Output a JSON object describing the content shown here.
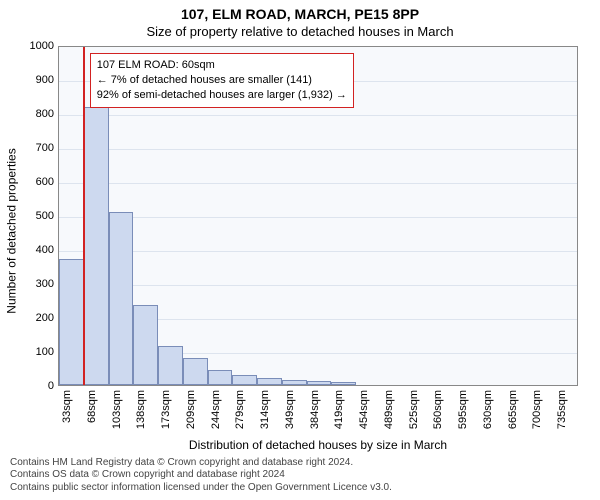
{
  "title": "107, ELM ROAD, MARCH, PE15 8PP",
  "subtitle": "Size of property relative to detached houses in March",
  "y_axis_label": "Number of detached properties",
  "x_axis_label": "Distribution of detached houses by size in March",
  "chart": {
    "type": "histogram",
    "background_color": "#f7f9fc",
    "grid_color": "#dde4ee",
    "axis_color": "#888888",
    "bar_fill": "#cdd9ef",
    "bar_border": "#7a8db8",
    "marker_color": "#d22222",
    "ylim": [
      0,
      1000
    ],
    "ytick_step": 100,
    "x_tick_labels": [
      "33sqm",
      "68sqm",
      "103sqm",
      "138sqm",
      "173sqm",
      "209sqm",
      "244sqm",
      "279sqm",
      "314sqm",
      "349sqm",
      "384sqm",
      "419sqm",
      "454sqm",
      "489sqm",
      "525sqm",
      "560sqm",
      "595sqm",
      "630sqm",
      "665sqm",
      "700sqm",
      "735sqm"
    ],
    "bars": [
      370,
      818,
      510,
      235,
      115,
      80,
      45,
      30,
      20,
      15,
      12,
      8,
      0,
      0,
      0,
      0,
      0,
      0,
      0,
      0,
      0
    ],
    "marker_bin_index": 1,
    "marker_position_in_bin": 0.0,
    "annotation": {
      "line1": "107 ELM ROAD: 60sqm",
      "line2": "← 7% of detached houses are smaller (141)",
      "line3": "92% of semi-detached houses are larger (1,932) →",
      "border_color": "#d22222",
      "bg_color": "#ffffff",
      "fontsize": 11
    }
  },
  "footer": {
    "line1": "Contains HM Land Registry data © Crown copyright and database right 2024.",
    "line2": "Contains OS data © Crown copyright and database right 2024",
    "line3": "Contains public sector information licensed under the Open Government Licence v3.0."
  },
  "fonts": {
    "title_size": 14,
    "subtitle_size": 13,
    "axis_label_size": 12,
    "tick_size": 11,
    "footer_size": 10
  }
}
